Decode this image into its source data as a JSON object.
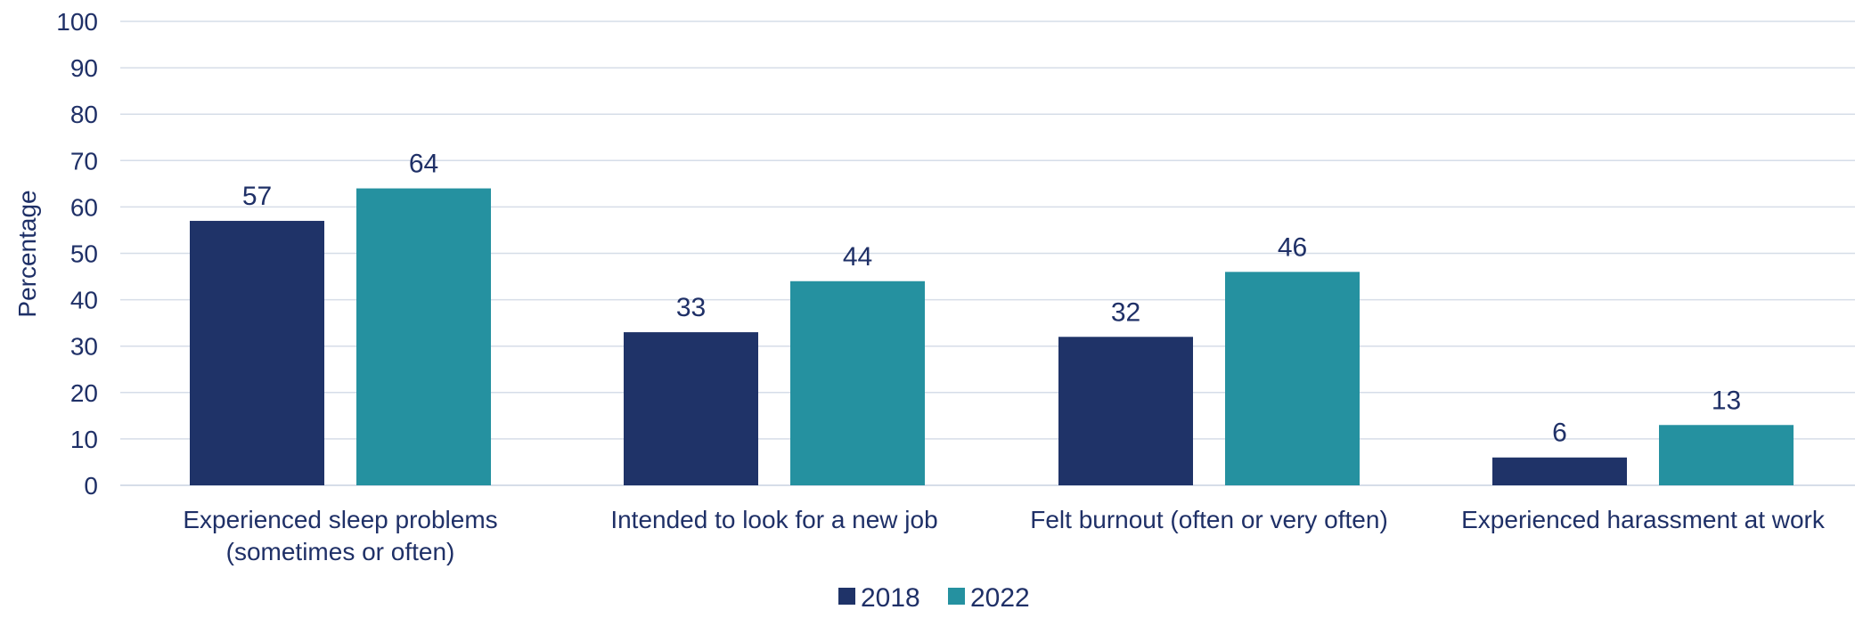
{
  "chart_data": {
    "type": "bar",
    "title": "",
    "xlabel": "",
    "ylabel": "Percentage",
    "ylim": [
      0,
      100
    ],
    "yticks": [
      "0",
      "10",
      "20",
      "30",
      "40",
      "50",
      "60",
      "70",
      "80",
      "90",
      "100"
    ],
    "grid": true,
    "legend_position": "bottom-center",
    "categories": [
      [
        "Experienced sleep problems",
        "(sometimes or often)"
      ],
      [
        "Intended to look for a new job"
      ],
      [
        "Felt burnout (often or very often)"
      ],
      [
        "Experienced harassment at work"
      ]
    ],
    "series": [
      {
        "name": "2018",
        "color": "#1f3368",
        "values": [
          57,
          33,
          32,
          6
        ]
      },
      {
        "name": "2022",
        "color": "#2591a0",
        "values": [
          64,
          44,
          46,
          13
        ]
      }
    ],
    "colors": {
      "text": "#1f3067",
      "grid": "#d6dde8"
    }
  }
}
